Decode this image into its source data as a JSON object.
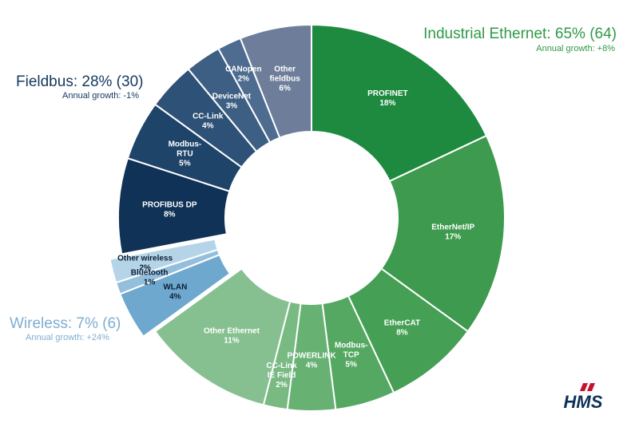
{
  "groups": {
    "industrial_ethernet": {
      "title": "Industrial Ethernet: 65% (64)",
      "subtitle": "Annual growth: +8%",
      "color": "#2e9a47"
    },
    "fieldbus": {
      "title": "Fieldbus: 28% (30)",
      "subtitle": "Annual growth: -1%",
      "color": "#13395e"
    },
    "wireless": {
      "title": "Wireless: 7% (6)",
      "subtitle": "Annual growth: +24%",
      "color": "#7eaed2"
    }
  },
  "logo": {
    "name": "hms-logo",
    "text": "HMS"
  },
  "chart_data": {
    "type": "pie",
    "style": "donut",
    "title": "",
    "slices": [
      {
        "group": "industrial_ethernet",
        "lines": [
          "PROFINET",
          "18%"
        ],
        "value": 18,
        "color": "#1d8a3f",
        "text": "#ffffff"
      },
      {
        "group": "industrial_ethernet",
        "lines": [
          "EtherNet/IP",
          "17%"
        ],
        "value": 17,
        "color": "#3d9a4e",
        "text": "#ffffff"
      },
      {
        "group": "industrial_ethernet",
        "lines": [
          "EtherCAT",
          "8%"
        ],
        "value": 8,
        "color": "#45a055",
        "text": "#ffffff"
      },
      {
        "group": "industrial_ethernet",
        "lines": [
          "Modbus-",
          "TCP",
          "5%"
        ],
        "value": 5,
        "color": "#55a862",
        "text": "#ffffff"
      },
      {
        "group": "industrial_ethernet",
        "lines": [
          "POWERLINK",
          "4%"
        ],
        "value": 4,
        "color": "#67b173",
        "text": "#ffffff"
      },
      {
        "group": "industrial_ethernet",
        "lines": [
          "CC-Link",
          "IE Field",
          "2%"
        ],
        "value": 2,
        "color": "#78ba82",
        "text": "#ffffff"
      },
      {
        "group": "industrial_ethernet",
        "lines": [
          "Other Ethernet",
          "11%"
        ],
        "value": 11,
        "color": "#86c090",
        "text": "#ffffff"
      },
      {
        "group": "wireless",
        "lines": [
          "WLAN",
          "4%"
        ],
        "value": 4,
        "color": "#6fa8cf",
        "text": "#0a1e33"
      },
      {
        "group": "wireless",
        "lines": [
          "Bluetooth",
          "1%"
        ],
        "value": 1,
        "color": "#93bfdd",
        "text": "#0a1e33"
      },
      {
        "group": "wireless",
        "lines": [
          "Other wireless",
          "2%"
        ],
        "value": 2,
        "color": "#b5d4e8",
        "text": "#0a1e33"
      },
      {
        "group": "fieldbus",
        "lines": [
          "PROFIBUS DP",
          "8%"
        ],
        "value": 8,
        "color": "#0f3256",
        "text": "#ffffff"
      },
      {
        "group": "fieldbus",
        "lines": [
          "Modbus-",
          "RTU",
          "5%"
        ],
        "value": 5,
        "color": "#1f4469",
        "text": "#ffffff"
      },
      {
        "group": "fieldbus",
        "lines": [
          "CC-Link",
          "4%"
        ],
        "value": 4,
        "color": "#2e5277",
        "text": "#ffffff"
      },
      {
        "group": "fieldbus",
        "lines": [
          "DeviceNet",
          "3%"
        ],
        "value": 3,
        "color": "#3d5f84",
        "text": "#ffffff"
      },
      {
        "group": "fieldbus",
        "lines": [
          "CANopen",
          "2%"
        ],
        "value": 2,
        "color": "#4d6c90",
        "text": "#ffffff"
      },
      {
        "group": "fieldbus",
        "lines": [
          "Other",
          "fieldbus",
          "6%"
        ],
        "value": 6,
        "color": "#6e7e9a",
        "text": "#ffffff"
      }
    ]
  }
}
